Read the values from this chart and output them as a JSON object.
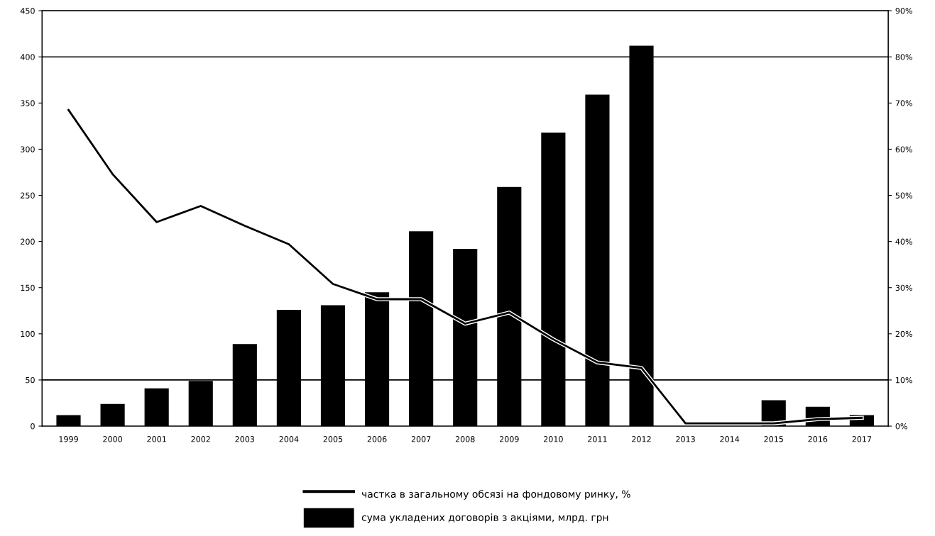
{
  "chart_data": {
    "type": "bar",
    "categories": [
      "1999",
      "2000",
      "2001",
      "2002",
      "2003",
      "2004",
      "2005",
      "2006",
      "2007",
      "2008",
      "2009",
      "2010",
      "2011",
      "2012",
      "2013",
      "2014",
      "2015",
      "2016",
      "2017"
    ],
    "series": [
      {
        "name": "частка в загальному обсязі на фондовому ринку, %",
        "type": "line",
        "axis": "y2",
        "color": "#000000",
        "values": [
          68.5,
          54.6,
          44.2,
          47.7,
          43.4,
          39.4,
          30.8,
          27.5,
          27.5,
          22.2,
          24.6,
          18.8,
          13.8,
          12.6,
          0.6,
          0.6,
          0.6,
          1.5,
          1.8
        ]
      },
      {
        "name": "сума укладених договорів з акціями, млрд. грн",
        "color": "#000000",
        "values": [
          12,
          24,
          41,
          49,
          89,
          126,
          131,
          145,
          211,
          192,
          259,
          318,
          359,
          412,
          null,
          null,
          28,
          21,
          12
        ]
      }
    ],
    "ylim": [
      0,
      450
    ],
    "yticks": [
      0,
      50,
      100,
      150,
      200,
      250,
      300,
      350,
      400,
      450
    ],
    "y2lim": [
      0,
      90
    ],
    "y2ticks": [
      {
        "value": 0,
        "label": "0%"
      },
      {
        "value": 10,
        "label": "10%"
      },
      {
        "value": 20,
        "label": "20%"
      },
      {
        "value": 30,
        "label": "30%"
      },
      {
        "value": 40,
        "label": "40%"
      },
      {
        "value": 50,
        "label": "50%"
      },
      {
        "value": 60,
        "label": "60%"
      },
      {
        "value": 70,
        "label": "70%"
      },
      {
        "value": 80,
        "label": "80%"
      },
      {
        "value": 90,
        "label": "90%"
      }
    ],
    "ref_lines": [
      {
        "axis": "y",
        "value": 50,
        "color": "#000000"
      },
      {
        "axis": "y",
        "value": 400,
        "color": "#000000"
      }
    ],
    "legend": "bottom",
    "marker": "none",
    "line_style": "solid"
  }
}
